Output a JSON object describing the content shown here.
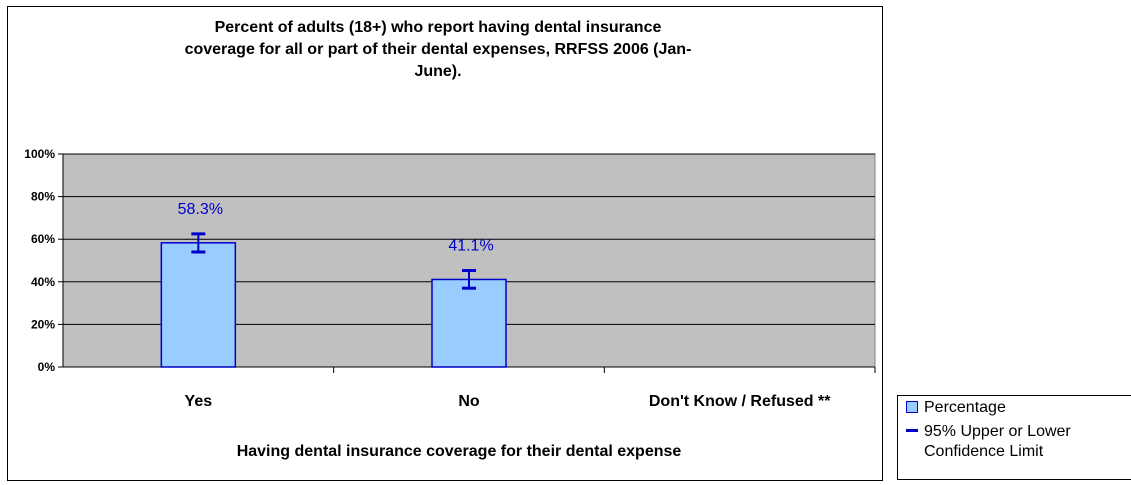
{
  "chart_data": {
    "type": "bar",
    "title_lines": [
      "Percent of adults (18+) who report having dental insurance",
      "coverage for all or part of their dental expenses, RRFSS 2006 (Jan-",
      "June)."
    ],
    "categories": [
      "Yes",
      "No",
      "Don't Know / Refused **"
    ],
    "series": [
      {
        "name": "Percentage",
        "values": [
          58.3,
          41.1,
          null
        ],
        "data_labels": [
          "58.3%",
          "41.1%",
          ""
        ],
        "ci_lower": [
          54.0,
          37.0,
          null
        ],
        "ci_upper": [
          62.5,
          45.3,
          null
        ]
      }
    ],
    "xlabel": "Having dental insurance coverage for their dental expense",
    "ylabel": "",
    "ylim": [
      0,
      100
    ],
    "yticks": [
      0,
      20,
      40,
      60,
      80,
      100
    ],
    "ytick_labels": [
      "0%",
      "20%",
      "40%",
      "60%",
      "80%",
      "100%"
    ],
    "grid": true,
    "legend_position": "bottom-right, outside plot",
    "legend": [
      {
        "label": "Percentage",
        "marker": "box"
      },
      {
        "label_lines": [
          "95% Upper or Lower",
          "Confidence Limit"
        ],
        "marker": "line"
      }
    ],
    "colors": {
      "bar_fill": "#99ccff",
      "bar_edge": "#0000cc",
      "error_bar": "#0000cc",
      "data_label": "#0000cc",
      "plot_background": "#c0c0c0",
      "gridline": "#000000"
    }
  }
}
